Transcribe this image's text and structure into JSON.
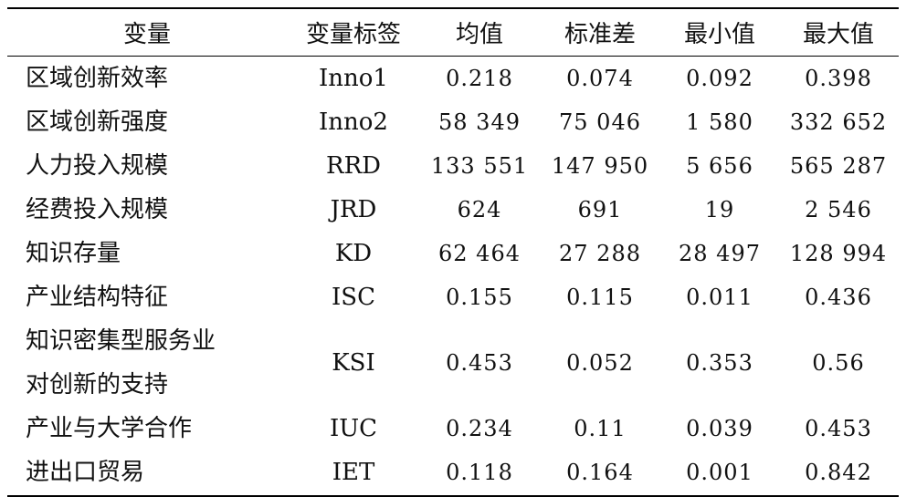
{
  "table": {
    "header": [
      "变量",
      "变量标签",
      "均值",
      "标准差",
      "最小值",
      "最大值"
    ],
    "rows": [
      [
        "区域创新效率",
        "Inno1",
        "0.218",
        "0.074",
        "0.092",
        "0.398"
      ],
      [
        "区域创新强度",
        "Inno2",
        "58 349",
        "75 046",
        "1 580",
        "332 652"
      ],
      [
        "人力投入规模",
        "RRD",
        "133 551",
        "147 950",
        "5 656",
        "565 287"
      ],
      [
        "经费投入规模",
        "JRD",
        "624",
        "691",
        "19",
        "2 546"
      ],
      [
        "知识存量",
        "KD",
        "62 464",
        "27 288",
        "28 497",
        "128 994"
      ],
      [
        "产业结构特征",
        "ISC",
        "0.155",
        "0.115",
        "0.011",
        "0.436"
      ],
      [
        [
          "知识密集型服务业",
          "对创新的支持"
        ],
        "KSI",
        "0.453",
        "0.052",
        "0.353",
        "0.56"
      ],
      [
        "产业与大学合作",
        "IUC",
        "0.234",
        "0.11",
        "0.039",
        "0.453"
      ],
      [
        "进出口贸易",
        "IET",
        "0.118",
        "0.164",
        "0.001",
        "0.842"
      ]
    ]
  }
}
